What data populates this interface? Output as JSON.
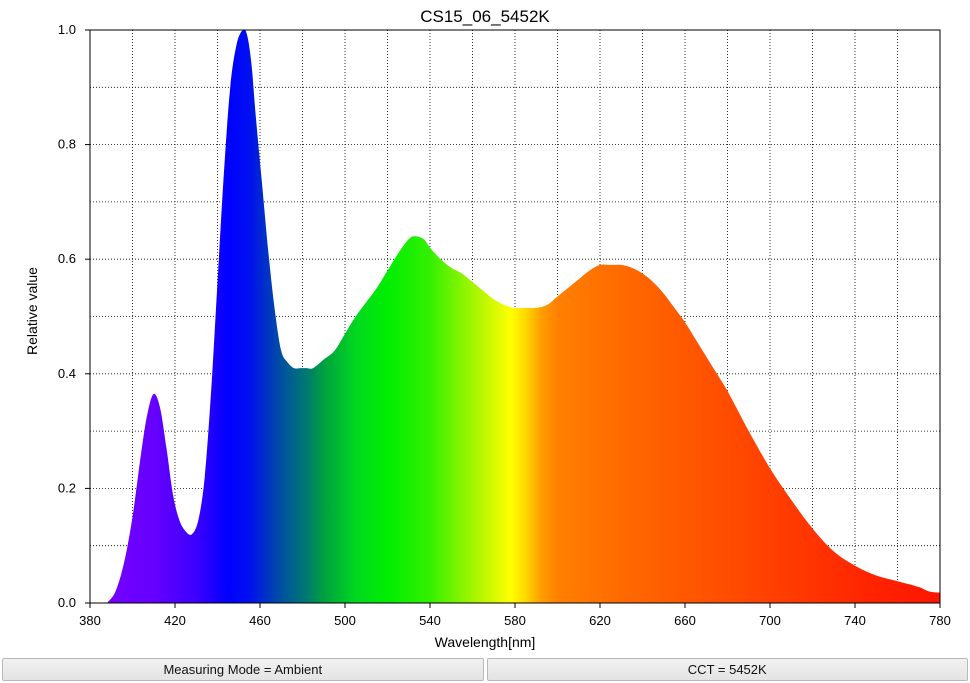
{
  "chart_data": {
    "type": "area",
    "title": "CS15_06_5452K",
    "xlabel": "Wavelength[nm]",
    "ylabel": "Relative value",
    "xlim": [
      380,
      780
    ],
    "ylim": [
      0,
      1.0
    ],
    "x_ticks": [
      380,
      420,
      460,
      500,
      540,
      580,
      620,
      660,
      700,
      740,
      780
    ],
    "y_ticks": [
      0.0,
      0.2,
      0.4,
      0.6,
      0.8,
      1.0
    ],
    "x_tick_labels": [
      "380",
      "420",
      "460",
      "500",
      "540",
      "580",
      "620",
      "660",
      "700",
      "740",
      "780"
    ],
    "y_tick_labels": [
      "0.0",
      "0.2",
      "0.4",
      "0.6",
      "0.8",
      "1.0"
    ],
    "grid": true,
    "grid_style": "dotted",
    "fill": "visible-spectrum gradient",
    "series": [
      {
        "x": [
          388,
          392,
          396,
          400,
          404,
          407,
          410,
          413,
          416,
          419,
          422,
          425,
          428,
          431,
          434,
          437,
          440,
          443,
          446,
          449,
          452,
          454,
          456,
          458,
          461,
          464,
          467,
          470,
          473,
          476,
          479,
          482,
          485,
          490,
          495,
          500,
          505,
          510,
          515,
          520,
          525,
          530,
          533,
          537,
          540,
          545,
          550,
          555,
          560,
          565,
          570,
          575,
          580,
          585,
          590,
          595,
          600,
          605,
          610,
          615,
          620,
          625,
          630,
          635,
          640,
          645,
          650,
          655,
          660,
          665,
          670,
          675,
          680,
          685,
          690,
          700,
          710,
          720,
          730,
          740,
          750,
          760,
          770,
          775,
          780
        ],
        "y": [
          0.0,
          0.02,
          0.07,
          0.15,
          0.26,
          0.33,
          0.365,
          0.34,
          0.27,
          0.19,
          0.145,
          0.125,
          0.12,
          0.145,
          0.22,
          0.37,
          0.56,
          0.75,
          0.9,
          0.975,
          1.0,
          0.99,
          0.94,
          0.85,
          0.73,
          0.61,
          0.51,
          0.44,
          0.42,
          0.41,
          0.41,
          0.41,
          0.41,
          0.425,
          0.44,
          0.47,
          0.5,
          0.525,
          0.55,
          0.58,
          0.61,
          0.635,
          0.64,
          0.635,
          0.62,
          0.6,
          0.585,
          0.575,
          0.56,
          0.545,
          0.53,
          0.52,
          0.515,
          0.515,
          0.515,
          0.52,
          0.535,
          0.55,
          0.565,
          0.58,
          0.59,
          0.59,
          0.59,
          0.585,
          0.575,
          0.56,
          0.54,
          0.515,
          0.49,
          0.46,
          0.43,
          0.4,
          0.37,
          0.335,
          0.3,
          0.235,
          0.18,
          0.13,
          0.09,
          0.065,
          0.048,
          0.038,
          0.028,
          0.02,
          0.018
        ]
      }
    ]
  },
  "status_bar": {
    "measuring_mode": "Measuring Mode = Ambient",
    "cct": "CCT = 5452K"
  }
}
